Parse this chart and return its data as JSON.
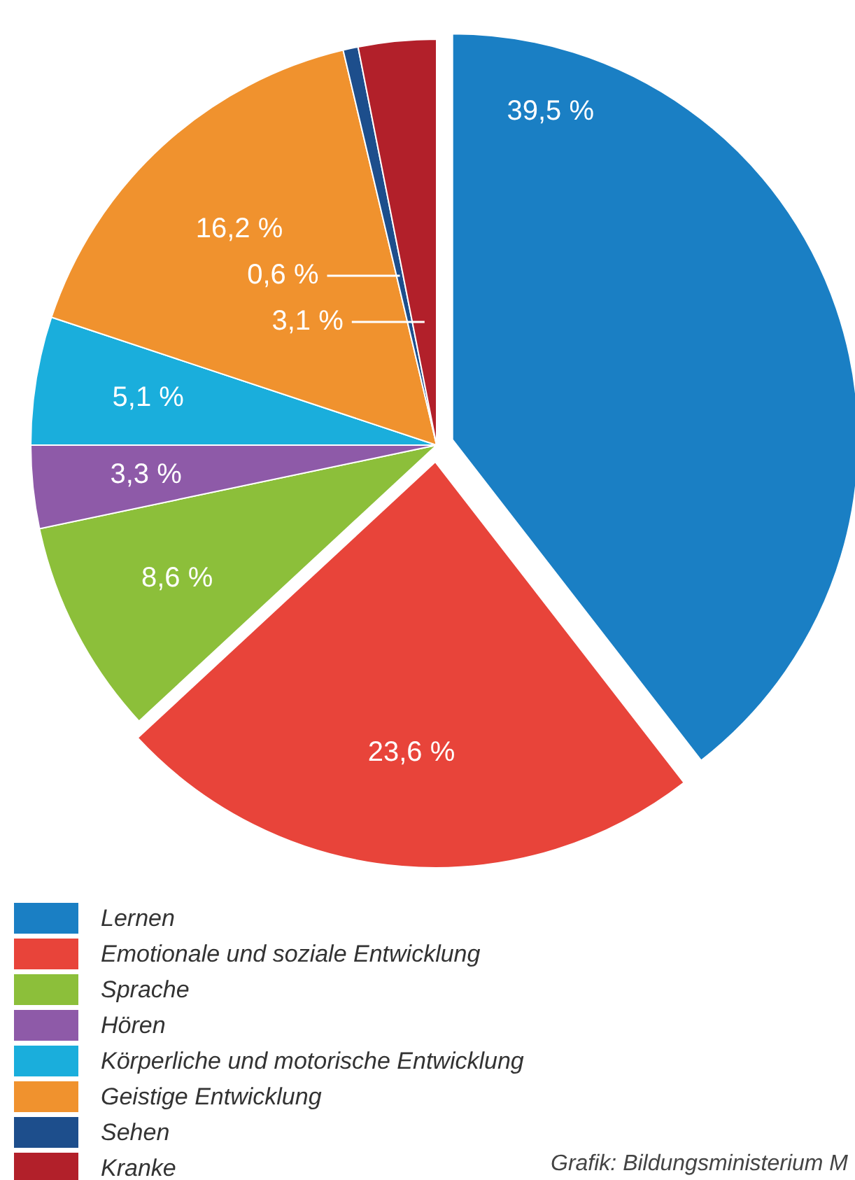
{
  "chart_data": {
    "type": "pie",
    "categories": [
      "Lernen",
      "Emotionale und soziale Entwicklung",
      "Sprache",
      "Hören",
      "Körperliche und motorische Entwicklung",
      "Geistige Entwicklung",
      "Sehen",
      "Kranke"
    ],
    "values": [
      39.5,
      23.6,
      8.6,
      3.3,
      5.1,
      16.2,
      0.6,
      3.1
    ],
    "colors": [
      "#1a7fc4",
      "#e8443a",
      "#8cbf3a",
      "#8e5aa8",
      "#1aaedc",
      "#f0922e",
      "#1d4e8c",
      "#b2202a"
    ],
    "value_labels": [
      "39,5 %",
      "23,6 %",
      "8,6 %",
      "3,3 %",
      "5,1 %",
      "16,2 %",
      "0,6 %",
      "3,1 %"
    ],
    "legend": "bottom",
    "annotations": [
      "Grafik: Bildungsministerium M"
    ]
  }
}
